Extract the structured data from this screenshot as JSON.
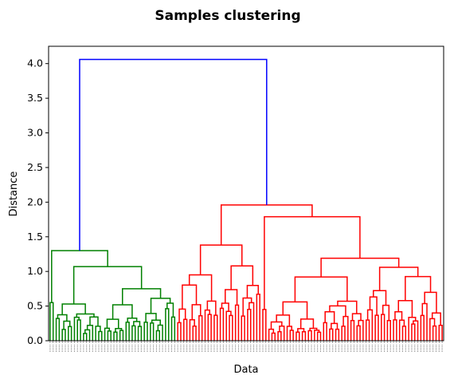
{
  "chart_data": {
    "type": "dendrogram",
    "title": "Samples clustering",
    "xlabel": "Data",
    "ylabel": "Distance",
    "ylim": [
      0,
      4.25
    ],
    "yticks": [
      "0.0",
      "0.5",
      "1.0",
      "1.5",
      "2.0",
      "2.5",
      "3.0",
      "3.5",
      "4.0"
    ],
    "grid": false,
    "legend": "none",
    "colors": {
      "root": "#0000ff",
      "cluster_1": "#008000",
      "cluster_2": "#ff0000"
    },
    "root_distance": 4.06,
    "cluster_1": {
      "leaf_count": 42,
      "merge_distances": [
        1.3,
        1.07,
        0.75,
        0.55,
        0.53,
        0.52,
        0.5,
        0.48,
        0.47,
        0.45,
        0.42,
        0.4,
        0.38,
        0.35,
        0.33,
        0.31,
        0.29,
        0.27,
        0.25,
        0.24,
        0.22,
        0.21,
        0.2,
        0.19,
        0.17,
        0.16,
        0.15,
        0.14,
        0.13,
        0.12,
        0.11
      ]
    },
    "cluster_2": {
      "leaf_count": 88,
      "merge_distances": [
        1.96,
        1.79,
        1.38,
        1.19,
        1.08,
        1.06,
        0.97,
        0.92,
        0.9,
        0.8,
        0.76,
        0.74,
        0.7,
        0.67,
        0.62,
        0.6,
        0.58,
        0.55,
        0.52,
        0.5,
        0.48,
        0.45,
        0.42,
        0.4,
        0.38,
        0.35,
        0.32,
        0.3,
        0.28,
        0.25,
        0.22,
        0.2,
        0.18,
        0.15,
        0.12,
        0.1
      ]
    }
  }
}
